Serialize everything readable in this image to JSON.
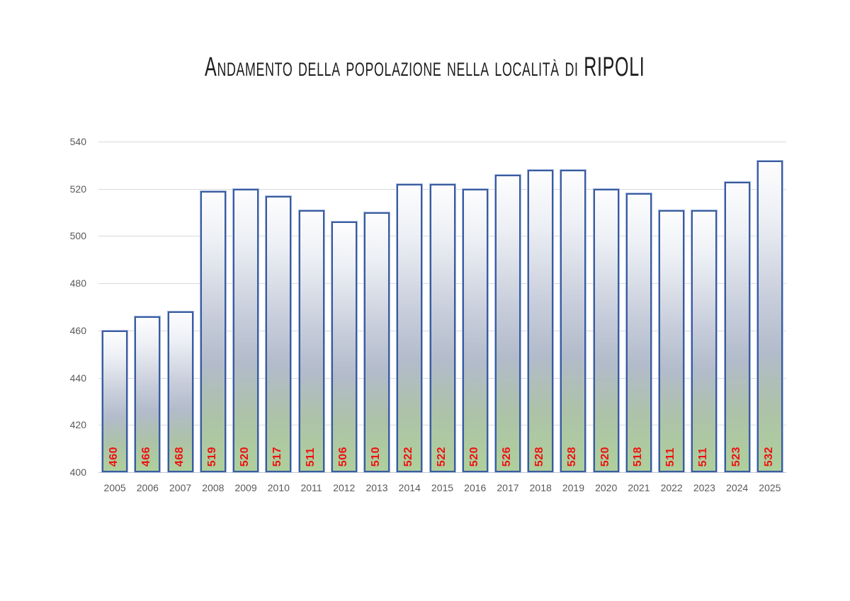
{
  "page": {
    "background_color": "#ffffff"
  },
  "chart_data": {
    "type": "bar",
    "title": "Andamento della popolazione nella località di RIPOLI",
    "categories": [
      "2005",
      "2006",
      "2007",
      "2008",
      "2009",
      "2010",
      "2011",
      "2012",
      "2013",
      "2014",
      "2015",
      "2016",
      "2017",
      "2018",
      "2019",
      "2020",
      "2021",
      "2022",
      "2023",
      "2024",
      "2025"
    ],
    "values": [
      460,
      466,
      468,
      519,
      520,
      517,
      511,
      506,
      510,
      522,
      522,
      520,
      526,
      528,
      528,
      520,
      518,
      511,
      511,
      523,
      532
    ],
    "xlabel": "",
    "ylabel": "",
    "ylim": [
      400,
      540
    ],
    "yticks": [
      400,
      420,
      440,
      460,
      480,
      500,
      520,
      540
    ],
    "grid": true,
    "legend": "none",
    "data_labels": {
      "visible": true,
      "orientation": "vertical-bottom-up",
      "position": "inside-base"
    },
    "styles": {
      "title_color": "#1c1c1c",
      "tick_label_color": "#595959",
      "grid_color": "#d9d9d9",
      "axis_line_color": "#c6c6c6",
      "bar_border_color": "#3a5c9e",
      "bar_border_glow": "#a3b6e0",
      "bar_gradient_colors": [
        "#fdfdfe",
        "#eceff4",
        "#c6ccda",
        "#b2bbca",
        "#adc2a8",
        "#aed09b"
      ],
      "bar_gradient_stops": [
        0,
        18,
        45,
        62,
        80,
        100
      ],
      "value_label_color": "#ee1111"
    }
  }
}
